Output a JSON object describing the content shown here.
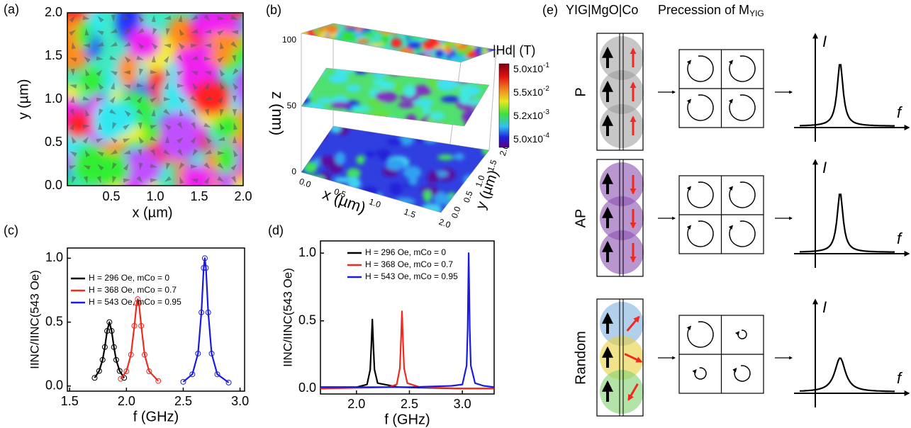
{
  "panel_labels": [
    "(a)",
    "(b)",
    "(c)",
    "(d)",
    "(e)"
  ],
  "panel_a": {
    "xlabel": "x (µm)",
    "ylabel": "y (µm)",
    "xticks": [
      "0.5",
      "1.0",
      "1.5",
      "2.0"
    ],
    "yticks": [
      "0.0",
      "0.5",
      "1.0",
      "1.5",
      "2.0"
    ]
  },
  "panel_b": {
    "zlabel": "z (nm)",
    "xlabel": "x (µm)",
    "ylabel": "y (µm)",
    "zticks": [
      "0",
      "50",
      "100"
    ],
    "xticks": [
      "0.0",
      "0.5",
      "1.0",
      "1.5",
      "2.0"
    ],
    "yticks": [
      "0.0",
      "0.5",
      "1.0",
      "1.5",
      "2.0"
    ],
    "colorbar_title": "|Hd| (T)",
    "colorbar_labels": [
      {
        "base": "5.0x10",
        "exp": "-1"
      },
      {
        "base": "5.5x10",
        "exp": "-2"
      },
      {
        "base": "5.2x10",
        "exp": "-3"
      },
      {
        "base": "5.0x10",
        "exp": "-4"
      }
    ]
  },
  "panel_e": {
    "columns": [
      "YIG|MgO|Co",
      {
        "text": "Precession of M",
        "sub": "YIG"
      }
    ],
    "rows": [
      {
        "label": "P",
        "y_axis": "I",
        "x_axis": "f"
      },
      {
        "label": "AP",
        "y_axis": "I",
        "x_axis": "f"
      },
      {
        "label": "Random",
        "y_axis": "I",
        "x_axis": "f"
      }
    ]
  },
  "chart_data": [
    {
      "type": "line",
      "markers": "circle",
      "xlabel": "f (GHz)",
      "ylabel": "IINC/IINC(543 Oe)",
      "xlim": [
        1.48,
        3.04
      ],
      "ylim": [
        -0.04,
        1.08
      ],
      "xticks": [
        1.5,
        {
          "value": 2,
          "label": "2.0"
        },
        2.5,
        {
          "value": 3,
          "label": "3.0"
        }
      ],
      "yticks": [
        {
          "value": 0,
          "label": "0.0"
        },
        0.5,
        {
          "value": 1,
          "label": "1.0"
        }
      ],
      "series": [
        {
          "name": "H = 296 Oe, mCo = 0",
          "color": "#000000",
          "x": [
            1.72,
            1.76,
            1.79,
            1.81,
            1.83,
            1.85,
            1.87,
            1.89,
            1.91,
            1.94,
            1.98
          ],
          "values": [
            0.064,
            0.118,
            0.205,
            0.305,
            0.431,
            0.5,
            0.431,
            0.305,
            0.205,
            0.118,
            0.064
          ]
        },
        {
          "name": "H = 368 Oe, mCo = 0.7",
          "color": "#f02a1e",
          "x": [
            1.95,
            2.0,
            2.04,
            2.07,
            2.09,
            2.1,
            2.11,
            2.13,
            2.16,
            2.2,
            2.28
          ],
          "values": [
            0.056,
            0.115,
            0.245,
            0.471,
            0.648,
            0.68,
            0.648,
            0.471,
            0.245,
            0.115,
            0.04
          ]
        },
        {
          "name": "H = 543 Oe, mCo = 0.95",
          "color": "#1a1ae0",
          "x": [
            2.5,
            2.58,
            2.63,
            2.66,
            2.68,
            2.69,
            2.7,
            2.72,
            2.75,
            2.8,
            2.9
          ],
          "values": [
            0.033,
            0.092,
            0.254,
            0.576,
            0.924,
            1.0,
            0.924,
            0.576,
            0.254,
            0.092,
            0.027
          ]
        }
      ]
    },
    {
      "type": "line",
      "xlabel": "f (GHz)",
      "ylabel": "IINC/IINC(543 Oe)",
      "xlim": [
        1.66,
        3.3
      ],
      "ylim": [
        -0.04,
        1.09
      ],
      "xticks": [
        {
          "value": 2,
          "label": "2.0"
        },
        2.5,
        {
          "value": 3,
          "label": "3.0"
        }
      ],
      "yticks": [
        {
          "value": 0,
          "label": "0.0"
        },
        0.5,
        {
          "value": 1,
          "label": "1.0"
        }
      ],
      "series": [
        {
          "name": "H = 296 Oe, mCo = 0",
          "color": "#000000",
          "x": [
            1.66,
            2.0,
            2.1,
            2.13,
            2.14,
            2.15,
            2.16,
            2.17,
            2.2,
            2.4,
            3.0,
            3.3
          ],
          "values": [
            0.01,
            0.01,
            0.03,
            0.14,
            0.31,
            0.51,
            0.31,
            0.14,
            0.04,
            0.01,
            0.0,
            0.0
          ]
        },
        {
          "name": "H = 368 Oe, mCo = 0.7",
          "color": "#f02a1e",
          "x": [
            1.66,
            2.3,
            2.38,
            2.41,
            2.42,
            2.43,
            2.44,
            2.45,
            2.48,
            2.6,
            3.0,
            3.3
          ],
          "values": [
            0.0,
            0.01,
            0.03,
            0.15,
            0.34,
            0.57,
            0.34,
            0.15,
            0.04,
            0.01,
            0.0,
            0.0
          ]
        },
        {
          "name": "H = 543 Oe, mCo = 0.95",
          "color": "#1a1ae0",
          "x": [
            1.66,
            2.5,
            2.9,
            3.0,
            3.04,
            3.05,
            3.06,
            3.07,
            3.08,
            3.12,
            3.2,
            3.3
          ],
          "values": [
            0.01,
            0.01,
            0.02,
            0.03,
            0.17,
            0.44,
            1.0,
            0.44,
            0.17,
            0.04,
            0.02,
            0.01
          ]
        }
      ]
    }
  ]
}
